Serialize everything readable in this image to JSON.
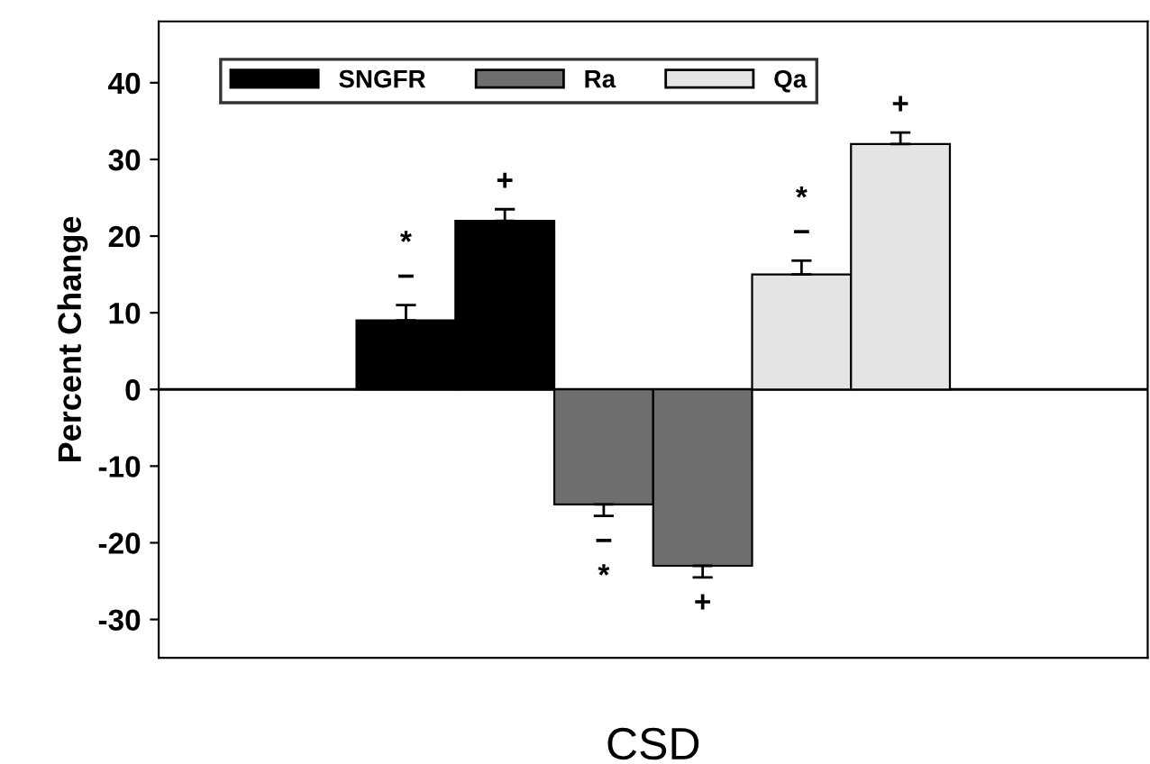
{
  "chart_data": {
    "type": "bar",
    "xlabel": "CSD",
    "ylabel": "Percent Change",
    "categories": [
      null,
      null,
      null,
      null,
      null,
      null,
      null,
      null,
      null,
      null
    ],
    "series": [
      {
        "name": "SNGFR",
        "color": "#000000",
        "values": [
          null,
          null,
          9,
          22,
          null,
          null,
          null,
          null,
          null,
          null
        ],
        "errors": [
          null,
          null,
          2,
          1.5,
          null,
          null,
          null,
          null,
          null,
          null
        ],
        "value_labels": [
          null,
          null,
          "*\n−",
          "+",
          null,
          null,
          null,
          null,
          null,
          null
        ]
      },
      {
        "name": "Ra",
        "color": "#6e6e6e",
        "values": [
          null,
          null,
          null,
          null,
          -15,
          -23,
          null,
          null,
          null,
          null
        ],
        "errors": [
          null,
          null,
          null,
          null,
          1.5,
          1.5,
          null,
          null,
          null,
          null
        ],
        "value_labels": [
          null,
          null,
          null,
          null,
          "−\n*",
          "+",
          null,
          null,
          null,
          null
        ]
      },
      {
        "name": "Qa",
        "color": "#e4e4e4",
        "values": [
          null,
          null,
          null,
          null,
          null,
          null,
          15,
          32,
          null,
          null
        ],
        "errors": [
          null,
          null,
          null,
          null,
          null,
          null,
          1.8,
          1.5,
          null,
          null
        ],
        "value_labels": [
          null,
          null,
          null,
          null,
          null,
          null,
          "*\n−",
          "+",
          null,
          null
        ]
      }
    ],
    "ylim": [
      -35,
      48
    ],
    "yticks": [
      -30,
      -20,
      -10,
      0,
      10,
      20,
      30,
      40
    ],
    "ref_lines": [
      {
        "axis": "y",
        "value": 0
      }
    ],
    "grid": false,
    "legend": "top left"
  }
}
